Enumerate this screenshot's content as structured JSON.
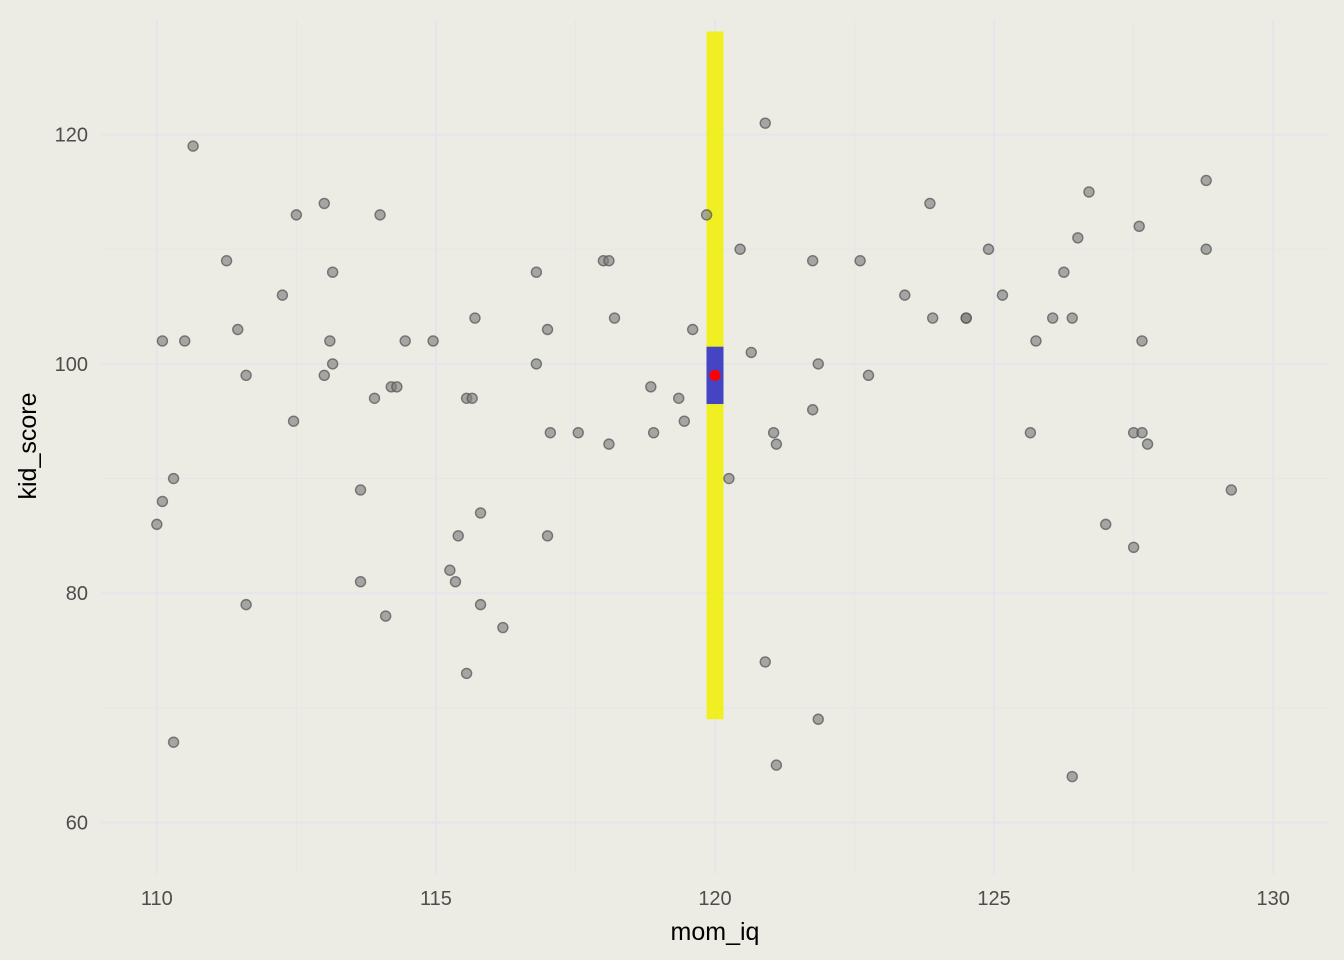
{
  "chart_data": {
    "type": "scatter",
    "title": "",
    "xlabel": "mom_iq",
    "ylabel": "kid_score",
    "xlim": [
      109,
      131
    ],
    "ylim": [
      55.5,
      130
    ],
    "x_ticks": [
      110,
      115,
      120,
      125,
      130
    ],
    "y_ticks": [
      60,
      80,
      100,
      120
    ],
    "x_tick_labels": [
      "110",
      "115",
      "120",
      "125",
      "130"
    ],
    "y_tick_labels": [
      "60",
      "80",
      "100",
      "120"
    ],
    "grid": true,
    "points": [
      {
        "x": 110.0,
        "y": 86
      },
      {
        "x": 110.1,
        "y": 88
      },
      {
        "x": 110.1,
        "y": 102
      },
      {
        "x": 110.3,
        "y": 90
      },
      {
        "x": 110.3,
        "y": 67
      },
      {
        "x": 110.5,
        "y": 102
      },
      {
        "x": 110.65,
        "y": 119
      },
      {
        "x": 111.25,
        "y": 109
      },
      {
        "x": 111.45,
        "y": 103
      },
      {
        "x": 111.6,
        "y": 99
      },
      {
        "x": 111.6,
        "y": 79
      },
      {
        "x": 112.25,
        "y": 106
      },
      {
        "x": 112.45,
        "y": 95
      },
      {
        "x": 112.5,
        "y": 113
      },
      {
        "x": 113.0,
        "y": 114
      },
      {
        "x": 113.0,
        "y": 99
      },
      {
        "x": 113.1,
        "y": 102
      },
      {
        "x": 113.15,
        "y": 108
      },
      {
        "x": 113.15,
        "y": 100
      },
      {
        "x": 113.65,
        "y": 89
      },
      {
        "x": 113.65,
        "y": 81
      },
      {
        "x": 113.9,
        "y": 97
      },
      {
        "x": 114.0,
        "y": 113
      },
      {
        "x": 114.1,
        "y": 78
      },
      {
        "x": 114.2,
        "y": 98
      },
      {
        "x": 114.3,
        "y": 98
      },
      {
        "x": 114.45,
        "y": 102
      },
      {
        "x": 114.95,
        "y": 102
      },
      {
        "x": 115.25,
        "y": 82
      },
      {
        "x": 115.35,
        "y": 81
      },
      {
        "x": 115.4,
        "y": 85
      },
      {
        "x": 115.55,
        "y": 97
      },
      {
        "x": 115.55,
        "y": 73
      },
      {
        "x": 115.65,
        "y": 97
      },
      {
        "x": 115.7,
        "y": 104
      },
      {
        "x": 115.8,
        "y": 87
      },
      {
        "x": 115.8,
        "y": 79
      },
      {
        "x": 116.2,
        "y": 77
      },
      {
        "x": 116.8,
        "y": 108
      },
      {
        "x": 116.8,
        "y": 100
      },
      {
        "x": 117.0,
        "y": 103
      },
      {
        "x": 117.0,
        "y": 85
      },
      {
        "x": 117.05,
        "y": 94
      },
      {
        "x": 117.55,
        "y": 94
      },
      {
        "x": 118.0,
        "y": 109
      },
      {
        "x": 118.1,
        "y": 109
      },
      {
        "x": 118.1,
        "y": 93
      },
      {
        "x": 118.2,
        "y": 104
      },
      {
        "x": 118.85,
        "y": 98
      },
      {
        "x": 118.9,
        "y": 94
      },
      {
        "x": 119.35,
        "y": 97
      },
      {
        "x": 119.45,
        "y": 95
      },
      {
        "x": 119.6,
        "y": 103
      },
      {
        "x": 119.85,
        "y": 113
      },
      {
        "x": 120.25,
        "y": 90
      },
      {
        "x": 120.45,
        "y": 110
      },
      {
        "x": 120.65,
        "y": 101
      },
      {
        "x": 120.9,
        "y": 121
      },
      {
        "x": 120.9,
        "y": 74
      },
      {
        "x": 121.05,
        "y": 94
      },
      {
        "x": 121.1,
        "y": 93
      },
      {
        "x": 121.1,
        "y": 65
      },
      {
        "x": 121.75,
        "y": 109
      },
      {
        "x": 121.75,
        "y": 96
      },
      {
        "x": 121.85,
        "y": 100
      },
      {
        "x": 121.85,
        "y": 69
      },
      {
        "x": 122.6,
        "y": 109
      },
      {
        "x": 122.75,
        "y": 99
      },
      {
        "x": 123.4,
        "y": 106
      },
      {
        "x": 123.85,
        "y": 114
      },
      {
        "x": 123.9,
        "y": 104
      },
      {
        "x": 124.5,
        "y": 104
      },
      {
        "x": 124.5,
        "y": 104
      },
      {
        "x": 124.9,
        "y": 110
      },
      {
        "x": 125.15,
        "y": 106
      },
      {
        "x": 125.65,
        "y": 94
      },
      {
        "x": 125.75,
        "y": 102
      },
      {
        "x": 126.05,
        "y": 104
      },
      {
        "x": 126.25,
        "y": 108
      },
      {
        "x": 126.4,
        "y": 104
      },
      {
        "x": 126.4,
        "y": 64
      },
      {
        "x": 126.5,
        "y": 111
      },
      {
        "x": 126.7,
        "y": 115
      },
      {
        "x": 127.0,
        "y": 86
      },
      {
        "x": 127.5,
        "y": 94
      },
      {
        "x": 127.5,
        "y": 84
      },
      {
        "x": 127.6,
        "y": 112
      },
      {
        "x": 127.65,
        "y": 102
      },
      {
        "x": 127.65,
        "y": 94
      },
      {
        "x": 127.75,
        "y": 93
      },
      {
        "x": 128.8,
        "y": 116
      },
      {
        "x": 128.8,
        "y": 110
      },
      {
        "x": 129.25,
        "y": 89
      }
    ],
    "prediction_interval": {
      "x": 120,
      "y_low": 69,
      "y_high": 129,
      "color": "#f0f000"
    },
    "confidence_interval": {
      "x": 120,
      "y_low": 96.5,
      "y_high": 101.5,
      "color": "#3b3bcc"
    },
    "point_estimate": {
      "x": 120,
      "y": 99,
      "color": "#ff0000"
    }
  },
  "colors": {
    "background": "#ecece4",
    "grid": "#e3e5ea",
    "point_fill": "#808080",
    "point_stroke": "#555555"
  }
}
